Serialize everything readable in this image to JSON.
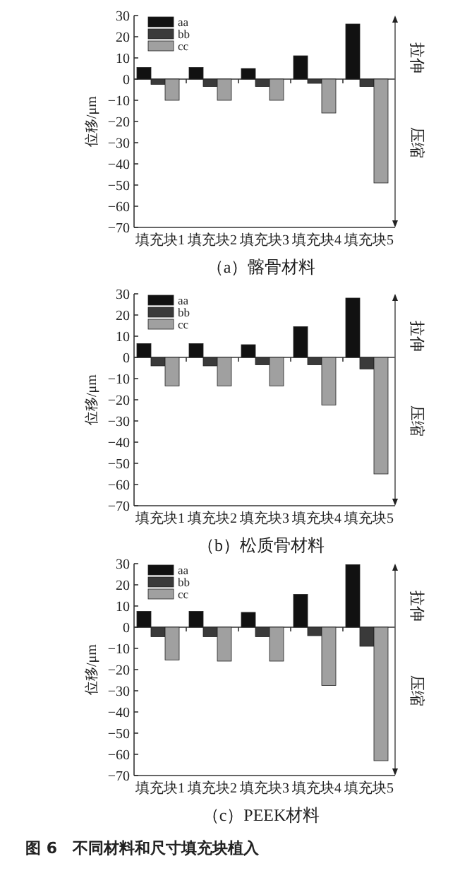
{
  "chart_data": [
    {
      "type": "bar",
      "title": "（a）髂骨材料",
      "ylabel": "位移/μm",
      "categories": [
        "填充块1",
        "填充块2",
        "填充块3",
        "填充块4",
        "填充块5"
      ],
      "series": [
        {
          "name": "aa",
          "color": "#111111",
          "values": [
            5.5,
            5.5,
            5,
            11,
            26
          ]
        },
        {
          "name": "bb",
          "color": "#3a3a3a",
          "values": [
            -2.5,
            -3.5,
            -3.5,
            -2,
            -3.5
          ]
        },
        {
          "name": "cc",
          "color": "#a0a0a0",
          "values": [
            -10,
            -10,
            -10,
            -16,
            -49
          ]
        }
      ],
      "ylim": [
        -70,
        30
      ],
      "yticks": [
        -70,
        -60,
        -50,
        -40,
        -30,
        -20,
        -10,
        0,
        10,
        20,
        30
      ],
      "legend": "top left",
      "annotations": [
        "拉伸",
        "压缩"
      ]
    },
    {
      "type": "bar",
      "title": "（b）松质骨材料",
      "ylabel": "位移/μm",
      "categories": [
        "填充块1",
        "填充块2",
        "填充块3",
        "填充块4",
        "填充块5"
      ],
      "series": [
        {
          "name": "aa",
          "color": "#111111",
          "values": [
            6.5,
            6.5,
            6,
            14.5,
            28
          ]
        },
        {
          "name": "bb",
          "color": "#3a3a3a",
          "values": [
            -4,
            -4,
            -3.5,
            -3.5,
            -5.5
          ]
        },
        {
          "name": "cc",
          "color": "#a0a0a0",
          "values": [
            -13.5,
            -13.5,
            -13.5,
            -22.5,
            -55
          ]
        }
      ],
      "ylim": [
        -70,
        30
      ],
      "yticks": [
        -70,
        -60,
        -50,
        -40,
        -30,
        -20,
        -10,
        0,
        10,
        20,
        30
      ],
      "legend": "top left",
      "annotations": [
        "拉伸",
        "压缩"
      ]
    },
    {
      "type": "bar",
      "title": "（c）PEEK材料",
      "ylabel": "位移/μm",
      "categories": [
        "填充块1",
        "填充块2",
        "填充块3",
        "填充块4",
        "填充块5"
      ],
      "series": [
        {
          "name": "aa",
          "color": "#111111",
          "values": [
            7.5,
            7.5,
            7,
            15.5,
            29.5
          ]
        },
        {
          "name": "bb",
          "color": "#3a3a3a",
          "values": [
            -4.5,
            -4.5,
            -4.5,
            -4,
            -9
          ]
        },
        {
          "name": "cc",
          "color": "#a0a0a0",
          "values": [
            -15.5,
            -16,
            -16,
            -27.5,
            -63
          ]
        }
      ],
      "ylim": [
        -70,
        30
      ],
      "yticks": [
        -70,
        -60,
        -50,
        -40,
        -30,
        -20,
        -10,
        0,
        10,
        20,
        30
      ],
      "legend": "top left",
      "annotations": [
        "拉伸",
        "压缩",
        "图 6　不同材料和尺寸填充块植入"
      ]
    }
  ]
}
